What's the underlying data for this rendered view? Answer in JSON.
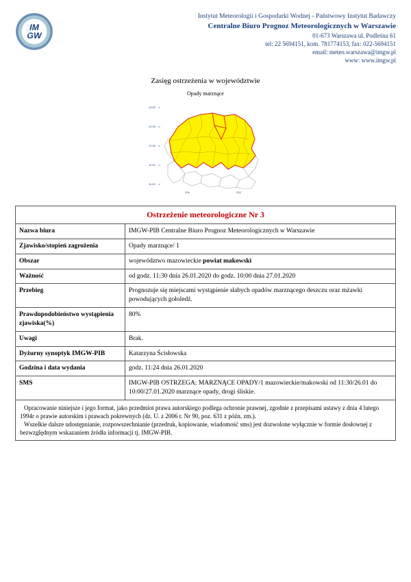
{
  "header": {
    "line1": "Instytut Meteorologii i Gospodarki Wodnej - Państwowy Instytut Badawczy",
    "line2": "Centralne Biuro Prognoz Meteorologicznych w Warszawie",
    "addr": "01-673 Warszawa ul. Podleśna 61",
    "tel": "tel: 22 5694151, kom. 781774153, fax: 022-5694151",
    "email": "email: meteo.warszawa@imgw.pl",
    "www": "www: www.imgw.pl"
  },
  "logo": {
    "text1": "IM",
    "text2": "GW",
    "ring_outer": "#6b8fb5",
    "ring_mid": "#a7c8d6",
    "ring_inner": "#ffffff",
    "text_color": "#1a3e7a"
  },
  "section_title": "Zasięg ostrzeżenia w województwie",
  "map": {
    "subtitle": "Opady marznące",
    "highlight_color": "#fff200",
    "highlight_border": "#d62c1a",
    "base_border": "#aaaaaa",
    "axis_color": "#1a3e7a",
    "ticks_y": [
      "13:00",
      "12:30",
      "12:00",
      "11:30",
      "11:00"
    ],
    "ticks_x": [
      "224",
      "232"
    ]
  },
  "warning": {
    "title": "Ostrzeżenie meteorologiczne Nr 3",
    "rows": [
      {
        "label": "Nazwa biura",
        "value": "IMGW-PIB Centralne Biuro Prognoz Meteorologicznych w Warszawie"
      },
      {
        "label": "Zjawisko/stopień zagrożenia",
        "value": "Opady marznące/ 1"
      },
      {
        "label": "Obszar",
        "value_html": "województwo mazowieckie <b>powiat makowski</b>"
      },
      {
        "label": "Ważność",
        "value": "od godz. 11:30 dnia 26.01.2020 do godz. 10:00 dnia 27.01.2020"
      },
      {
        "label": "Przebieg",
        "value": "Prognozuje się miejscami wystąpienie słabych opadów marznącego deszczu oraz mżawki powodujących gołoledź."
      },
      {
        "label": "Prawdopodobieństwo wystąpienia zjawiska(%)",
        "value": "80%"
      },
      {
        "label": "Uwagi",
        "value": "Brak."
      },
      {
        "label": "Dyżurny synoptyk IMGW-PIB",
        "value": "Katarzyna Ścisłowska"
      },
      {
        "label": "Godzina i data wydania",
        "value": "godz. 11:24 dnia 26.01.2020"
      },
      {
        "label": "SMS",
        "value": "IMGW-PIB OSTRZEGA: MARZNĄCE OPADY/1 mazowieckie/makowski od 11:30/26.01 do 10:00/27.01.2020 marznące opady, drogi śliskie."
      }
    ],
    "footnote_p1": "Opracowanie niniejsze i jego format, jako przedmiot prawa autorskiego podlega ochronie prawnej, zgodnie z przepisami ustawy z dnia 4 lutego 1994r o prawie autorskim i prawach pokrewnych (dz. U. z 2006 r. Nr 90, poz. 631 z późn. zm.).",
    "footnote_p2": "Wszelkie dalsze udostępnianie, rozpowszechnianie (przedruk, kopiowanie, wiadomość sms) jest dozwolone wyłącznie w formie dosłownej z bezwzględnym wskazaniem źródła informacji tj. IMGW-PIB."
  }
}
